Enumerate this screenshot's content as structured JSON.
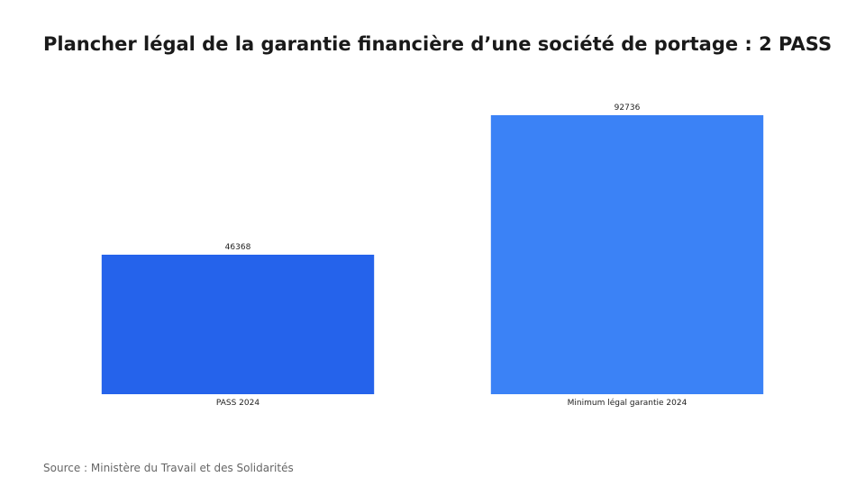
{
  "chart_data": {
    "type": "bar",
    "title": "Plancher légal de la garantie financière d’une société de portage : 2 PASS",
    "categories": [
      "PASS 2024",
      "Minimum légal garantie 2024"
    ],
    "values": [
      46368,
      92736
    ],
    "colors": [
      "#2563eb",
      "#3b82f6"
    ],
    "xlabel": "",
    "ylabel": "",
    "ylim": [
      0,
      92736
    ],
    "grid": false,
    "legend": "none",
    "data_labels": [
      "46368",
      "92736"
    ]
  },
  "source": "Source : Ministère du Travail et des Solidarités"
}
